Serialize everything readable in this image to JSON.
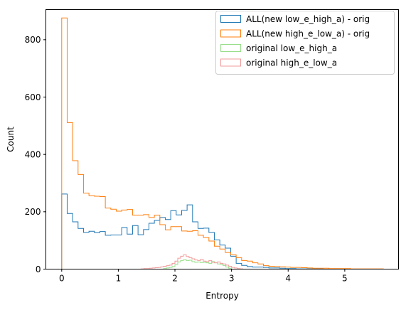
{
  "chart_data": {
    "type": "histogram",
    "title": "",
    "xlabel": "Entropy",
    "ylabel": "Count",
    "xlim": [
      -0.28,
      5.95
    ],
    "ylim": [
      0,
      905
    ],
    "x_ticks": [
      0,
      1,
      2,
      3,
      4,
      5
    ],
    "y_ticks": [
      0,
      200,
      400,
      600,
      800
    ],
    "grid": false,
    "legend_position": "top-right",
    "series": [
      {
        "name": "ALL(new low_e_high_a) - orig",
        "color": "#1f77b4",
        "edges": [
          0,
          0.0963,
          0.1926,
          0.2889,
          0.3852,
          0.4815,
          0.5778,
          0.6741,
          0.7704,
          0.8667,
          0.963,
          1.0593,
          1.1556,
          1.2519,
          1.3482,
          1.4445,
          1.5408,
          1.6371,
          1.7334,
          1.8297,
          1.926,
          2.0223,
          2.1186,
          2.2149,
          2.3112,
          2.4075,
          2.5038,
          2.6001,
          2.6964,
          2.7927,
          2.889,
          2.9853,
          3.0816,
          3.1779,
          3.2742,
          3.3705,
          3.4668,
          3.5631,
          3.6594,
          3.7557,
          3.852,
          3.9483,
          4.0446,
          4.1409,
          4.2372,
          4.3335,
          4.4298,
          4.5261,
          4.6224,
          4.7187,
          4.815,
          4.9113,
          5.0076,
          5.1039,
          5.2002,
          5.2965,
          5.3928,
          5.4891,
          5.5854,
          5.6817
        ],
        "counts": [
          262,
          194,
          165,
          142,
          128,
          132,
          127,
          131,
          118,
          119,
          119,
          145,
          122,
          152,
          120,
          138,
          160,
          170,
          180,
          173,
          204,
          189,
          205,
          224,
          165,
          142,
          143,
          128,
          102,
          84,
          73,
          45,
          20,
          13,
          9,
          7,
          7,
          6,
          4,
          4,
          3,
          2,
          2,
          1,
          1,
          1,
          1,
          1,
          0,
          0,
          0,
          0,
          0,
          0,
          0,
          0,
          0,
          0,
          0
        ]
      },
      {
        "name": "ALL(new high_e_low_a) - orig",
        "color": "#ff7f0e",
        "edges": [
          0,
          0.0963,
          0.1926,
          0.2889,
          0.3852,
          0.4815,
          0.5778,
          0.6741,
          0.7704,
          0.8667,
          0.963,
          1.0593,
          1.1556,
          1.2519,
          1.3482,
          1.4445,
          1.5408,
          1.6371,
          1.7334,
          1.8297,
          1.926,
          2.0223,
          2.1186,
          2.2149,
          2.3112,
          2.4075,
          2.5038,
          2.6001,
          2.6964,
          2.7927,
          2.889,
          2.9853,
          3.0816,
          3.1779,
          3.2742,
          3.3705,
          3.4668,
          3.5631,
          3.6594,
          3.7557,
          3.852,
          3.9483,
          4.0446,
          4.1409,
          4.2372,
          4.3335,
          4.4298,
          4.5261,
          4.6224,
          4.7187,
          4.815,
          4.9113,
          5.0076,
          5.1039,
          5.2002,
          5.2965,
          5.3928,
          5.4891,
          5.5854,
          5.6817
        ],
        "counts": [
          876,
          511,
          378,
          330,
          265,
          256,
          254,
          253,
          213,
          209,
          202,
          206,
          208,
          188,
          188,
          190,
          180,
          188,
          155,
          137,
          148,
          148,
          133,
          132,
          134,
          118,
          110,
          98,
          80,
          70,
          58,
          50,
          40,
          30,
          28,
          22,
          18,
          12,
          10,
          9,
          8,
          7,
          6,
          6,
          5,
          4,
          3,
          3,
          3,
          2,
          2,
          2,
          2,
          1,
          1,
          1,
          1,
          1,
          1
        ]
      },
      {
        "name": "original low_e_high_a",
        "color": "#98df8a",
        "edges": [
          1.8,
          1.85,
          1.9,
          1.95,
          2.0,
          2.05,
          2.1,
          2.15,
          2.2,
          2.25,
          2.3,
          2.35,
          2.4,
          2.45,
          2.5,
          2.55,
          2.6,
          2.65,
          2.7,
          2.75,
          2.8,
          2.85,
          2.9,
          2.95,
          3.0
        ],
        "counts": [
          2,
          4,
          6,
          9,
          16,
          25,
          30,
          33,
          30,
          31,
          26,
          24,
          25,
          23,
          24,
          22,
          20,
          26,
          22,
          18,
          17,
          12,
          7,
          3
        ]
      },
      {
        "name": "original high_e_low_a",
        "color": "#f19b9b",
        "edges": [
          1.4,
          1.45,
          1.5,
          1.55,
          1.6,
          1.65,
          1.7,
          1.75,
          1.8,
          1.85,
          1.9,
          1.95,
          2.0,
          2.05,
          2.1,
          2.15,
          2.2,
          2.25,
          2.3,
          2.35,
          2.4,
          2.45,
          2.5,
          2.55,
          2.6,
          2.65,
          2.7,
          2.75,
          2.8,
          2.85,
          2.9,
          2.95,
          3.0,
          3.05,
          3.1,
          3.15,
          3.2
        ],
        "counts": [
          1,
          2,
          2,
          3,
          4,
          5,
          6,
          8,
          10,
          12,
          14,
          20,
          28,
          38,
          45,
          50,
          44,
          40,
          36,
          32,
          30,
          34,
          28,
          26,
          30,
          24,
          22,
          25,
          20,
          18,
          14,
          10,
          6,
          4,
          2,
          1
        ]
      }
    ]
  }
}
